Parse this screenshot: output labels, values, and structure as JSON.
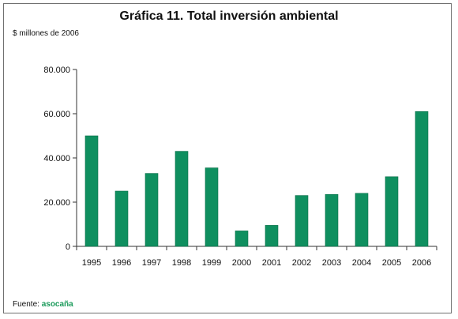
{
  "chart_data": {
    "type": "bar",
    "title": "Gráfica 11. Total inversión ambiental",
    "ylabel": "$ millones de 2006",
    "source_label": "Fuente:",
    "source_brand": "asocaña",
    "categories": [
      "1995",
      "1996",
      "1997",
      "1998",
      "1999",
      "2000",
      "2001",
      "2002",
      "2003",
      "2004",
      "2005",
      "2006"
    ],
    "values": [
      50000,
      25000,
      33000,
      43000,
      35500,
      7000,
      9500,
      23000,
      23500,
      24000,
      31500,
      61000
    ],
    "ylim": [
      0,
      80000
    ],
    "yticks": [
      0,
      20000,
      40000,
      60000,
      80000
    ],
    "ytick_labels": [
      "0",
      "20.000",
      "40.000",
      "60.000",
      "80.000"
    ],
    "bar_color": "#0f8f5f",
    "grid": false
  }
}
